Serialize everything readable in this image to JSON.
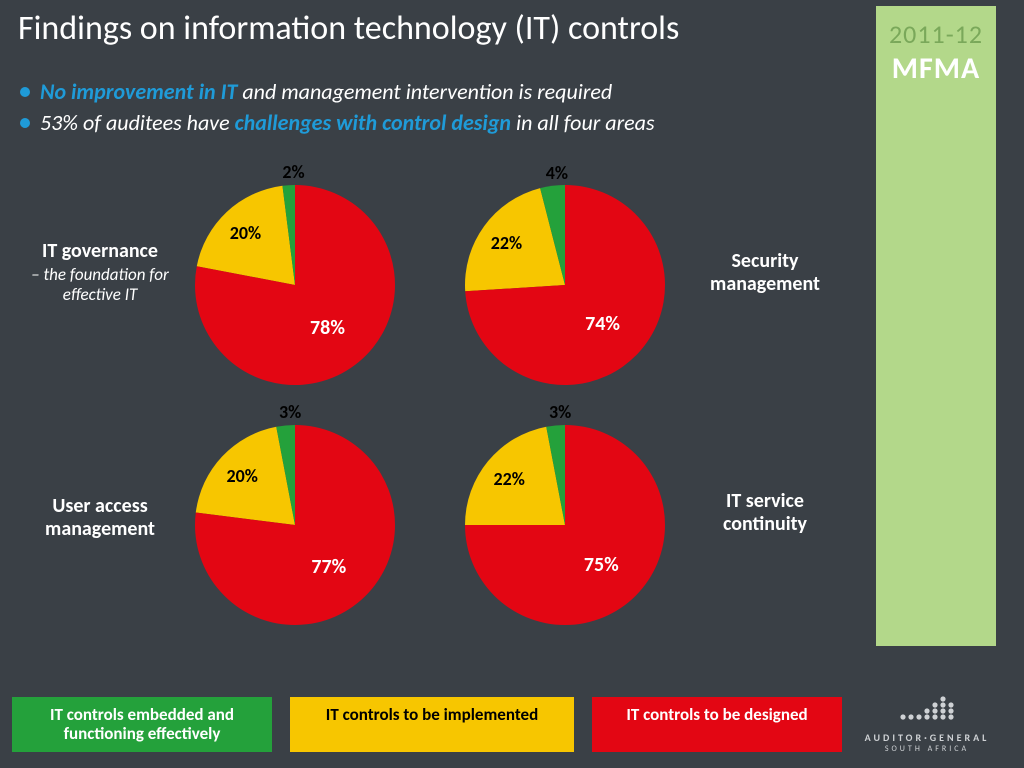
{
  "title": "Findings on information technology (IT) controls",
  "bullets": [
    {
      "highlight": "No improvement in IT",
      "rest": " and management intervention is required"
    },
    {
      "prefix": "53% of auditees have ",
      "highlight": "challenges with control design",
      "rest": " in all four areas"
    }
  ],
  "sidebar": {
    "year": "2011-12",
    "mfma": "MFMA",
    "bg": "#b3d88a",
    "year_color": "#7aa85a"
  },
  "colors": {
    "background": "#3a4046",
    "green": "#24a13b",
    "yellow": "#f7c600",
    "red": "#e30613",
    "accent_blue": "#1f9bd8",
    "text": "#ffffff"
  },
  "charts": {
    "type": "pie",
    "slice_order": [
      "green",
      "yellow",
      "red"
    ],
    "slice_colors": {
      "green": "#24a13b",
      "yellow": "#f7c600",
      "red": "#e30613"
    },
    "pie_radius": 100,
    "start_angle_deg": -90,
    "label_fontsize": 18,
    "title_fontsize": 20,
    "pies": [
      {
        "id": "it-governance",
        "title": "IT governance",
        "subtitle": "– the foundation for effective IT",
        "title_side": "left",
        "values": {
          "green": 2,
          "yellow": 20,
          "red": 78
        }
      },
      {
        "id": "security-management",
        "title": "Security management",
        "subtitle": "",
        "title_side": "right",
        "values": {
          "green": 4,
          "yellow": 22,
          "red": 74
        }
      },
      {
        "id": "user-access-management",
        "title": "User access management",
        "subtitle": "",
        "title_side": "left",
        "values": {
          "green": 3,
          "yellow": 20,
          "red": 77
        }
      },
      {
        "id": "it-service-continuity",
        "title": "IT service continuity",
        "subtitle": "",
        "title_side": "right",
        "values": {
          "green": 3,
          "yellow": 22,
          "red": 75
        }
      }
    ]
  },
  "legend": {
    "green": "IT controls embedded and functioning effectively",
    "yellow": "IT controls to be implemented",
    "red": "IT controls to be designed"
  },
  "logo": {
    "name": "AUDITOR·GENERAL",
    "sub": "SOUTH AFRICA"
  }
}
